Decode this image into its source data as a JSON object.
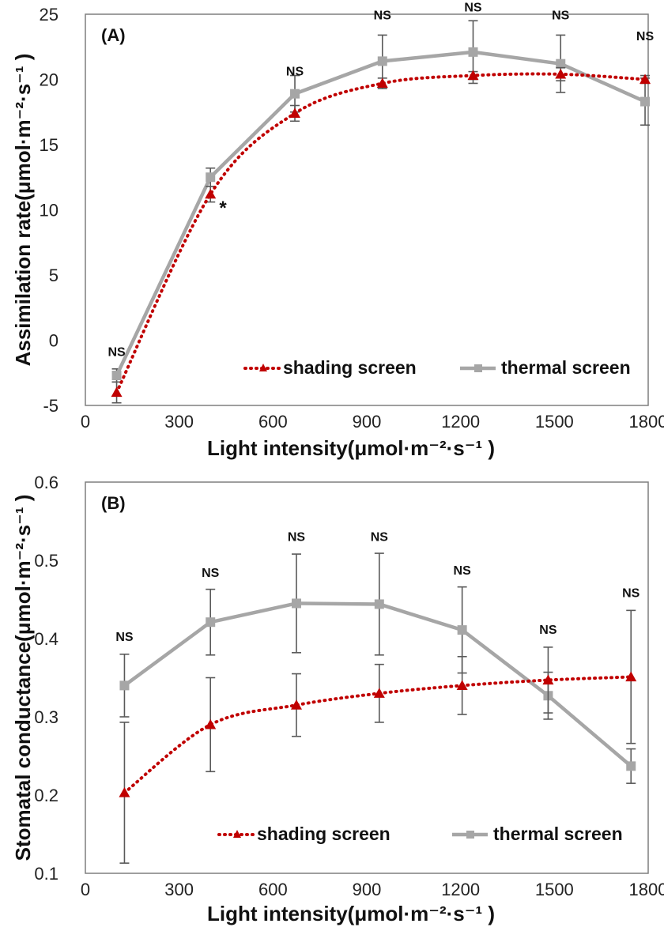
{
  "chart_data": [
    {
      "type": "line",
      "panel_label": "(A)",
      "xlabel": "Light intensity(μmol·m⁻²·s⁻¹ )",
      "ylabel": "Assimilation rate(μmol·m⁻²·s⁻¹ )",
      "xlim": [
        0,
        1800
      ],
      "ylim": [
        -5,
        25
      ],
      "xticks": [
        0,
        300,
        600,
        900,
        1200,
        1500,
        1800
      ],
      "yticks": [
        -5,
        0,
        5,
        10,
        15,
        20,
        25
      ],
      "x": [
        100,
        400,
        670,
        950,
        1240,
        1520,
        1790
      ],
      "series": [
        {
          "name": "shading screen",
          "color": "#c00000",
          "style": "dotted",
          "marker": "triangle",
          "values": [
            -4.0,
            11.2,
            17.4,
            19.7,
            20.3,
            20.4,
            20.0
          ],
          "err": [
            0.8,
            0.6,
            0.6,
            0.4,
            0.3,
            0.5,
            0.3
          ]
        },
        {
          "name": "thermal screen",
          "color": "#a6a6a6",
          "style": "solid",
          "marker": "square",
          "values": [
            -2.7,
            12.5,
            18.9,
            21.4,
            22.1,
            21.2,
            18.3
          ],
          "err": [
            0.5,
            0.7,
            1.4,
            2.0,
            2.4,
            2.2,
            1.8
          ]
        }
      ],
      "annotations": [
        {
          "text": "NS",
          "x": 100,
          "y": -1.2
        },
        {
          "text": "*",
          "x": 440,
          "y": 10.4
        },
        {
          "text": "NS",
          "x": 670,
          "y": 20.3
        },
        {
          "text": "NS",
          "x": 950,
          "y": 24.6
        },
        {
          "text": "NS",
          "x": 1240,
          "y": 25.2
        },
        {
          "text": "NS",
          "x": 1520,
          "y": 24.6
        },
        {
          "text": "NS",
          "x": 1790,
          "y": 23.0
        }
      ],
      "legend": "bottom-right",
      "grid": false
    },
    {
      "type": "line",
      "panel_label": "(B)",
      "xlabel": "Light intensity(μmol·m⁻²·s⁻¹ )",
      "ylabel": "Stomatal conductance(μmol·m⁻²·s⁻¹ )",
      "xlim": [
        0,
        1800
      ],
      "ylim": [
        0.1,
        0.6
      ],
      "xticks": [
        0,
        300,
        600,
        900,
        1200,
        1500,
        1800
      ],
      "yticks": [
        0.1,
        0.2,
        0.3,
        0.4,
        0.5,
        0.6
      ],
      "x": [
        125,
        400,
        675,
        940,
        1205,
        1480,
        1745
      ],
      "series": [
        {
          "name": "shading screen",
          "color": "#c00000",
          "style": "dotted",
          "marker": "triangle",
          "values": [
            0.203,
            0.29,
            0.315,
            0.33,
            0.34,
            0.347,
            0.351
          ],
          "err": [
            0.09,
            0.06,
            0.04,
            0.037,
            0.037,
            0.042,
            0.085
          ]
        },
        {
          "name": "thermal screen",
          "color": "#a6a6a6",
          "style": "solid",
          "marker": "square",
          "values": [
            0.34,
            0.421,
            0.445,
            0.444,
            0.411,
            0.327,
            0.237
          ],
          "err": [
            0.04,
            0.042,
            0.063,
            0.065,
            0.055,
            0.03,
            0.022
          ]
        }
      ],
      "annotations": [
        {
          "text": "NS",
          "x": 125,
          "y": 0.397
        },
        {
          "text": "NS",
          "x": 400,
          "y": 0.479
        },
        {
          "text": "NS",
          "x": 675,
          "y": 0.525
        },
        {
          "text": "NS",
          "x": 940,
          "y": 0.525
        },
        {
          "text": "NS",
          "x": 1205,
          "y": 0.482
        },
        {
          "text": "NS",
          "x": 1480,
          "y": 0.406
        },
        {
          "text": "NS",
          "x": 1745,
          "y": 0.453
        }
      ],
      "legend": "bottom-right",
      "grid": false
    }
  ]
}
